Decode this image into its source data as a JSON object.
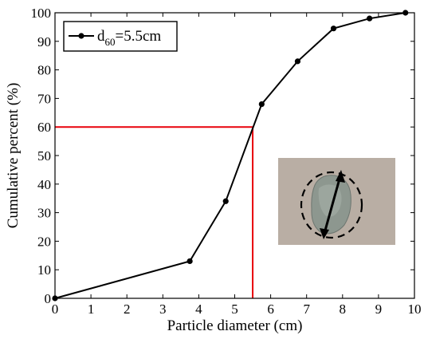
{
  "chart_data": {
    "type": "line",
    "title": "",
    "xlabel": "Particle diameter (cm)",
    "ylabel": "Cumulative percent (%)",
    "xlim": [
      0,
      10
    ],
    "ylim": [
      0,
      100
    ],
    "xticks": [
      "0",
      "1",
      "2",
      "3",
      "4",
      "5",
      "6",
      "7",
      "8",
      "9",
      "10"
    ],
    "yticks": [
      "0",
      "10",
      "20",
      "30",
      "40",
      "50",
      "60",
      "70",
      "80",
      "90",
      "100"
    ],
    "grid": false,
    "legend_position": "top-left",
    "series": [
      {
        "legend_main": "d",
        "legend_sub": "60",
        "legend_rest": "=5.5cm",
        "color": "#000000",
        "marker": "circle",
        "x": [
          0,
          3.75,
          4.75,
          5.75,
          6.75,
          7.75,
          8.75,
          9.75
        ],
        "y": [
          0,
          13,
          34,
          68,
          83,
          94.5,
          98,
          100
        ]
      }
    ],
    "reference_lines": {
      "color": "#e8000b",
      "x": 5.5,
      "y": 60
    },
    "inset_image": {
      "icon": "gravel-particle-photo",
      "background": "#b9aea4",
      "outline_color": "#000000"
    }
  }
}
